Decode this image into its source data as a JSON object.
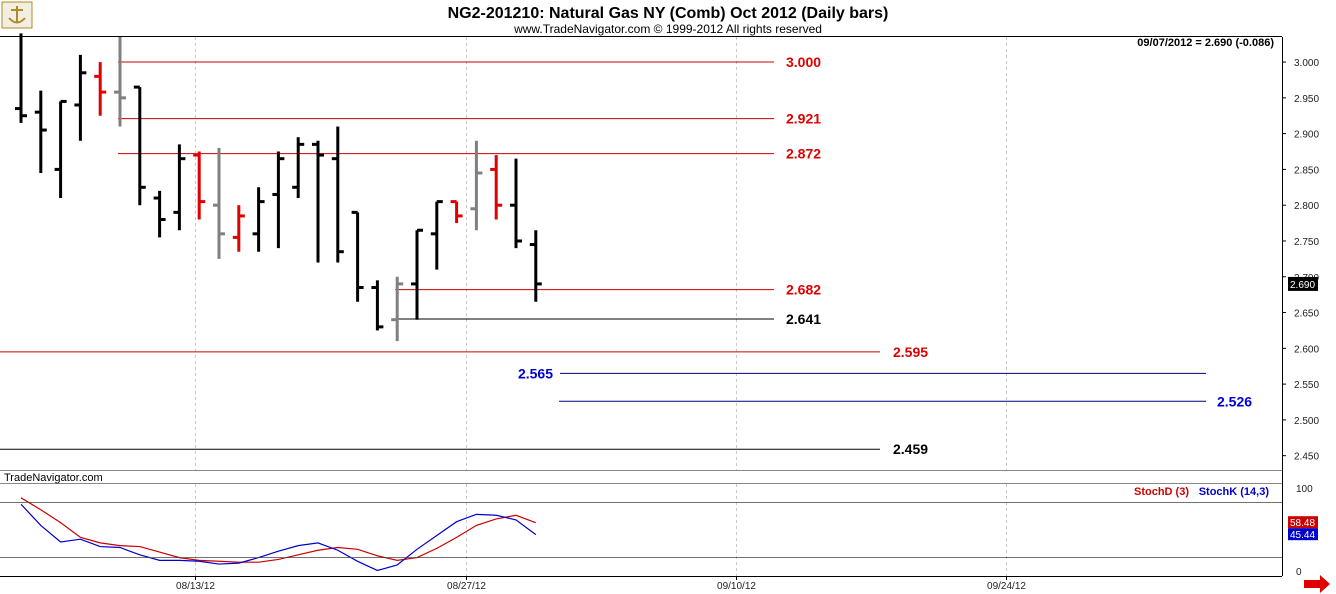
{
  "header": {
    "title": "NG2-201210:  Natural Gas NY (Comb) Oct 2012  (Daily bars)",
    "subtitle": "www.TradeNavigator.com © 1999-2012 All rights reserved",
    "last_info": "09/07/2012 = 2.690 (-0.086)",
    "watermark": "TradeNavigator.com"
  },
  "colors": {
    "up": "#000000",
    "down": "#e00000",
    "neutral": "#808080",
    "red_line": "#cc0000",
    "blue_line": "#000080",
    "black_line": "#000000",
    "stochD": "#cc0000",
    "stochK": "#0000cc",
    "grid": "#c8c8c8"
  },
  "icons": {
    "logo": "anchor-logo-icon",
    "scroll": "right-arrow-icon"
  },
  "chart_data": [
    {
      "type": "ohlc",
      "title": "NG2-201210:  Natural Gas NY (Comb) Oct 2012  (Daily bars)",
      "ylim": [
        2.43,
        3.035
      ],
      "yticks": [
        "3.000",
        "2.950",
        "2.900",
        "2.850",
        "2.800",
        "2.750",
        "2.700",
        "2.650",
        "2.600",
        "2.550",
        "2.500",
        "2.450"
      ],
      "xticks": [
        "08/13/12",
        "08/27/12",
        "09/10/12",
        "09/24/12"
      ],
      "last_price": "2.690",
      "bars": [
        {
          "date": "07/31/12",
          "o": 2.935,
          "h": 3.04,
          "l": 2.915,
          "c": 2.925,
          "color": "up"
        },
        {
          "date": "08/01/12",
          "o": 2.93,
          "h": 2.96,
          "l": 2.845,
          "c": 2.905,
          "color": "up"
        },
        {
          "date": "08/02/12",
          "o": 2.85,
          "h": 2.945,
          "l": 2.81,
          "c": 2.945,
          "color": "up"
        },
        {
          "date": "08/03/12",
          "o": 2.94,
          "h": 3.01,
          "l": 2.89,
          "c": 2.985,
          "color": "up"
        },
        {
          "date": "08/06/12",
          "o": 2.98,
          "h": 3.0,
          "l": 2.925,
          "c": 2.958,
          "color": "down"
        },
        {
          "date": "08/07/12",
          "o": 2.958,
          "h": 3.035,
          "l": 2.91,
          "c": 2.95,
          "color": "neutral"
        },
        {
          "date": "08/08/12",
          "o": 2.965,
          "h": 2.965,
          "l": 2.8,
          "c": 2.825,
          "color": "up"
        },
        {
          "date": "08/09/12",
          "o": 2.81,
          "h": 2.82,
          "l": 2.755,
          "c": 2.78,
          "color": "up"
        },
        {
          "date": "08/10/12",
          "o": 2.79,
          "h": 2.885,
          "l": 2.765,
          "c": 2.865,
          "color": "up"
        },
        {
          "date": "08/13/12",
          "o": 2.87,
          "h": 2.875,
          "l": 2.78,
          "c": 2.805,
          "color": "down"
        },
        {
          "date": "08/14/12",
          "o": 2.8,
          "h": 2.88,
          "l": 2.725,
          "c": 2.76,
          "color": "neutral"
        },
        {
          "date": "08/15/12",
          "o": 2.755,
          "h": 2.8,
          "l": 2.735,
          "c": 2.785,
          "color": "down"
        },
        {
          "date": "08/16/12",
          "o": 2.76,
          "h": 2.825,
          "l": 2.735,
          "c": 2.805,
          "color": "up"
        },
        {
          "date": "08/17/12",
          "o": 2.815,
          "h": 2.875,
          "l": 2.74,
          "c": 2.865,
          "color": "up"
        },
        {
          "date": "08/20/12",
          "o": 2.825,
          "h": 2.895,
          "l": 2.81,
          "c": 2.885,
          "color": "up"
        },
        {
          "date": "08/21/12",
          "o": 2.885,
          "h": 2.89,
          "l": 2.72,
          "c": 2.87,
          "color": "up"
        },
        {
          "date": "08/22/12",
          "o": 2.865,
          "h": 2.91,
          "l": 2.72,
          "c": 2.735,
          "color": "up"
        },
        {
          "date": "08/23/12",
          "o": 2.79,
          "h": 2.79,
          "l": 2.665,
          "c": 2.685,
          "color": "up"
        },
        {
          "date": "08/24/12",
          "o": 2.685,
          "h": 2.695,
          "l": 2.625,
          "c": 2.63,
          "color": "up"
        },
        {
          "date": "08/27/12",
          "o": 2.64,
          "h": 2.7,
          "l": 2.61,
          "c": 2.69,
          "color": "neutral"
        },
        {
          "date": "08/28/12",
          "o": 2.69,
          "h": 2.765,
          "l": 2.64,
          "c": 2.765,
          "color": "up"
        },
        {
          "date": "08/29/12",
          "o": 2.76,
          "h": 2.805,
          "l": 2.71,
          "c": 2.805,
          "color": "up"
        },
        {
          "date": "08/30/12",
          "o": 2.805,
          "h": 2.805,
          "l": 2.775,
          "c": 2.785,
          "color": "down"
        },
        {
          "date": "08/31/12",
          "o": 2.795,
          "h": 2.89,
          "l": 2.765,
          "c": 2.845,
          "color": "neutral"
        },
        {
          "date": "09/04/12",
          "o": 2.85,
          "h": 2.87,
          "l": 2.78,
          "c": 2.8,
          "color": "down"
        },
        {
          "date": "09/05/12",
          "o": 2.8,
          "h": 2.865,
          "l": 2.74,
          "c": 2.75,
          "color": "up"
        },
        {
          "date": "09/06/12",
          "o": 2.745,
          "h": 2.765,
          "l": 2.665,
          "c": 2.69,
          "color": "up"
        }
      ],
      "levels": [
        {
          "value": 3.0,
          "label": "3.000",
          "color": "red",
          "from": "08/07/12",
          "to": "09/21/12"
        },
        {
          "value": 2.921,
          "label": "2.921",
          "color": "red",
          "from": "08/07/12",
          "to": "09/21/12"
        },
        {
          "value": 2.872,
          "label": "2.872",
          "color": "red",
          "from": "08/07/12",
          "to": "09/21/12"
        },
        {
          "value": 2.682,
          "label": "2.682",
          "color": "red",
          "from": "08/27/12",
          "to": "09/21/12"
        },
        {
          "value": 2.641,
          "label": "2.641",
          "color": "black",
          "from": "08/27/12",
          "to": "09/21/12"
        },
        {
          "value": 2.595,
          "label": "2.595",
          "color": "red",
          "from": "start",
          "to": "09/27/12"
        },
        {
          "value": 2.565,
          "label": "2.565",
          "color": "blue",
          "from": "08/29/12",
          "to": "10/10/12"
        },
        {
          "value": 2.526,
          "label": "2.526",
          "color": "blue",
          "from": "08/28/12",
          "to": "10/10/12"
        },
        {
          "value": 2.459,
          "label": "2.459",
          "color": "black",
          "from": "start",
          "to": "09/27/12"
        }
      ]
    },
    {
      "type": "line",
      "legend": [
        "StochD (3)",
        "StochK (14,3)"
      ],
      "ylim": [
        0,
        100
      ],
      "yticks": [
        "100",
        "0"
      ],
      "last_values": {
        "stochD": "58.48",
        "stochK": "45.44"
      },
      "series": [
        {
          "name": "StochD (3)",
          "color": "stochD",
          "values": [
            85,
            72,
            58,
            42,
            36,
            33,
            32,
            26,
            20,
            17,
            16,
            15,
            15,
            18,
            23,
            28,
            31,
            29,
            22,
            17,
            20,
            30,
            42,
            55,
            62,
            66,
            58
          ]
        },
        {
          "name": "StochK (14,3)",
          "color": "stochK",
          "values": [
            78,
            55,
            37,
            40,
            32,
            31,
            23,
            17,
            17,
            16,
            13,
            14,
            20,
            27,
            33,
            36,
            28,
            16,
            6,
            12,
            29,
            44,
            59,
            67,
            66,
            61,
            45
          ]
        }
      ]
    }
  ]
}
